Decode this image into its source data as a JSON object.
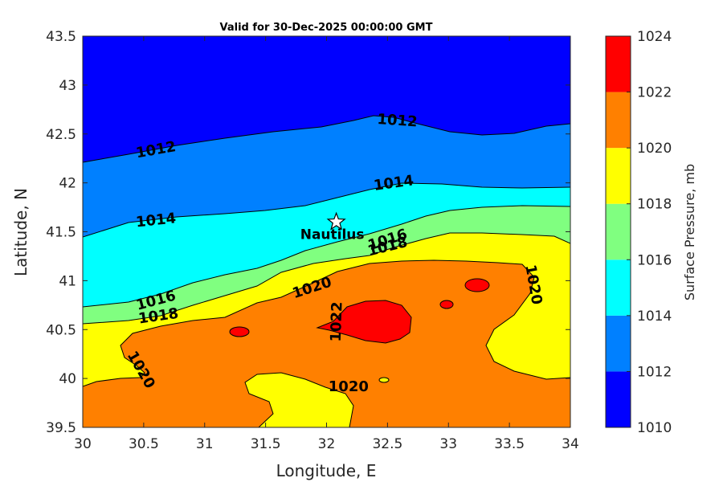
{
  "chart_data": {
    "type": "contour",
    "title": "Valid for 30-Dec-2025 00:00:00 GMT",
    "xlabel": "Longitude, E",
    "ylabel": "Latitude, N",
    "xlim": [
      30,
      34
    ],
    "ylim": [
      39.5,
      43.5
    ],
    "xticks": [
      "30",
      "30.5",
      "31",
      "31.5",
      "32",
      "32.5",
      "33",
      "33.5",
      "34"
    ],
    "yticks": [
      "39.5",
      "40",
      "40.5",
      "41",
      "41.5",
      "42",
      "42.5",
      "43",
      "43.5"
    ],
    "colorbar": {
      "label": "Surface Pressure, mb",
      "ticks": [
        "1010",
        "1012",
        "1014",
        "1016",
        "1018",
        "1020",
        "1022",
        "1024"
      ],
      "levels": [
        1010,
        1012,
        1014,
        1016,
        1018,
        1020,
        1022,
        1024
      ],
      "colors": [
        "#0000ff",
        "#0080ff",
        "#00ffff",
        "#80ff80",
        "#ffff00",
        "#ff8000",
        "#ff0000",
        "#800000"
      ]
    },
    "contour_labels": [
      {
        "text": "1012",
        "lon": 30.6,
        "lat": 42.34,
        "angle": -10
      },
      {
        "text": "1012",
        "lon": 32.58,
        "lat": 42.64,
        "angle": 4
      },
      {
        "text": "1014",
        "lon": 30.6,
        "lat": 41.62,
        "angle": -6
      },
      {
        "text": "1014",
        "lon": 32.55,
        "lat": 42.0,
        "angle": -8
      },
      {
        "text": "1016",
        "lon": 30.6,
        "lat": 40.8,
        "angle": -15
      },
      {
        "text": "1016",
        "lon": 32.5,
        "lat": 41.42,
        "angle": -18
      },
      {
        "text": "1018",
        "lon": 30.62,
        "lat": 40.64,
        "angle": -8
      },
      {
        "text": "1018",
        "lon": 32.5,
        "lat": 41.35,
        "angle": -14
      },
      {
        "text": "1020",
        "lon": 31.88,
        "lat": 40.93,
        "angle": -18
      },
      {
        "text": "1020",
        "lon": 30.48,
        "lat": 40.09,
        "angle": 60
      },
      {
        "text": "1020",
        "lon": 33.7,
        "lat": 40.96,
        "angle": 80
      },
      {
        "text": "1020",
        "lon": 32.18,
        "lat": 39.92,
        "angle": 0
      },
      {
        "text": "1022",
        "lon": 32.08,
        "lat": 40.58,
        "angle": -88
      }
    ],
    "marker": {
      "name": "Nautilus",
      "lon": 32.08,
      "lat": 41.6,
      "symbol": "star"
    }
  }
}
